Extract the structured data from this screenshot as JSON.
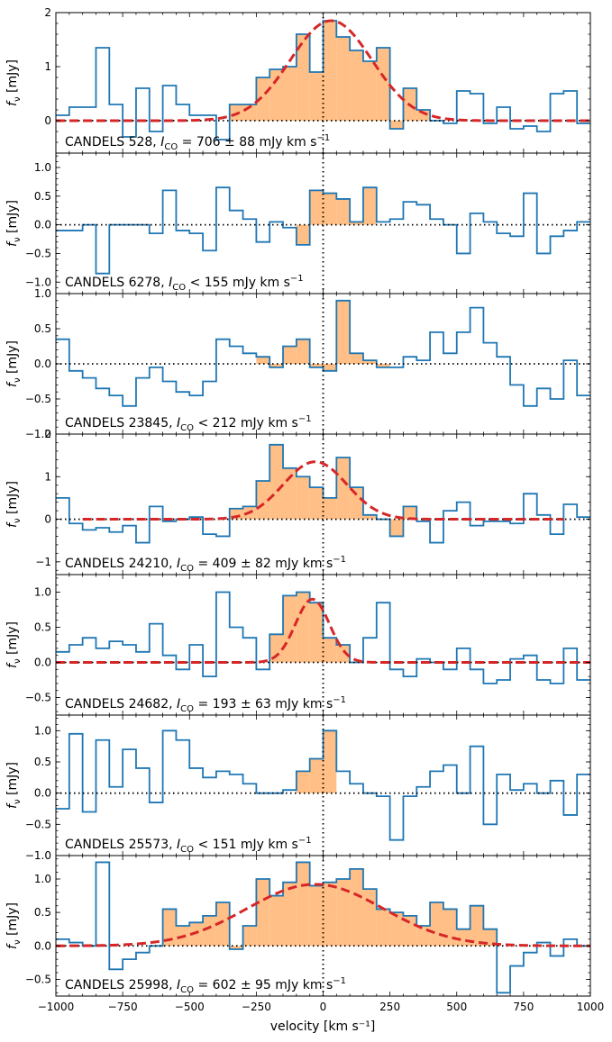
{
  "figure": {
    "xlabel": "velocity [km s⁻¹]"
  },
  "colors": {
    "spectrum": "#1f77b4",
    "fill": "#ffbf86",
    "fit": "#d62728",
    "zero_line": "#000000",
    "axes": "#000000"
  },
  "chart_data": [
    {
      "type": "line",
      "panel_label": "CANDELS 528, I_CO = 706 ± 88 mJy km s⁻¹",
      "label_prefix": "CANDELS 528, ",
      "label_sym": "I",
      "label_sub": "CO",
      "label_rest": " = 706 ± 88 mJy km s",
      "label_sup": "−1",
      "ylabel": "f_ν [mJy]",
      "xlim": [
        -1000,
        1000
      ],
      "ylim": [
        -0.6,
        2.0
      ],
      "yticks": [
        0,
        1,
        2
      ],
      "yticklabels": [
        "0",
        "1",
        "2"
      ],
      "bin_width": 50,
      "channel_centers_kms": [
        -975,
        -925,
        -875,
        -825,
        -775,
        -725,
        -675,
        -625,
        -575,
        -525,
        -475,
        -425,
        -375,
        -325,
        -275,
        -225,
        -175,
        -125,
        -75,
        -25,
        25,
        75,
        125,
        175,
        225,
        275,
        325,
        375,
        425,
        475,
        525,
        575,
        625,
        675,
        725,
        775,
        825,
        875,
        925,
        975
      ],
      "flux_mjy": [
        0.1,
        0.25,
        0.25,
        1.35,
        0.3,
        -0.3,
        0.6,
        -0.2,
        0.65,
        0.3,
        0.1,
        0.1,
        -0.35,
        0.3,
        0.3,
        0.8,
        0.95,
        1.0,
        1.6,
        0.9,
        1.85,
        1.55,
        1.3,
        1.1,
        1.35,
        -0.15,
        0.6,
        0.2,
        0.0,
        -0.05,
        0.55,
        0.5,
        -0.05,
        0.25,
        -0.15,
        -0.1,
        -0.2,
        0.5,
        0.55,
        -0.05
      ],
      "highlight_velocity_range_kms": [
        -350,
        450
      ],
      "fit": {
        "amplitude_mjy": 1.85,
        "center_kms": 30,
        "fwhm_kms": 360
      },
      "fit_xrange_kms": [
        -1000,
        1000
      ]
    },
    {
      "type": "line",
      "panel_label": "CANDELS 6278, I_CO < 155 mJy km s⁻¹",
      "label_prefix": "CANDELS 6278, ",
      "label_sym": "I",
      "label_sub": "CO",
      "label_rest": " < 155 mJy km s",
      "label_sup": "−1",
      "ylabel": "f_ν [mJy]",
      "xlim": [
        -1000,
        1000
      ],
      "ylim": [
        -1.2,
        1.25
      ],
      "yticks": [
        -1.0,
        -0.5,
        0.0,
        0.5,
        1.0
      ],
      "yticklabels": [
        "−1.0",
        "−0.5",
        "0.0",
        "0.5",
        "1.0"
      ],
      "bin_width": 50,
      "channel_centers_kms": [
        -975,
        -925,
        -875,
        -825,
        -775,
        -725,
        -675,
        -625,
        -575,
        -525,
        -475,
        -425,
        -375,
        -325,
        -275,
        -225,
        -175,
        -125,
        -75,
        -25,
        25,
        75,
        125,
        175,
        225,
        275,
        325,
        375,
        425,
        475,
        525,
        575,
        625,
        675,
        725,
        775,
        825,
        875,
        925,
        975
      ],
      "flux_mjy": [
        -0.1,
        -0.1,
        0.0,
        -0.85,
        0.0,
        0.0,
        0.0,
        -0.15,
        0.6,
        -0.1,
        -0.15,
        -0.45,
        0.65,
        0.25,
        0.1,
        -0.3,
        0.05,
        -0.05,
        -0.35,
        0.6,
        0.55,
        0.45,
        0.05,
        0.65,
        0.05,
        0.1,
        0.4,
        0.35,
        0.1,
        0.0,
        -0.5,
        0.2,
        0.05,
        -0.15,
        -0.2,
        0.55,
        -0.5,
        -0.2,
        -0.1,
        0.05
      ],
      "highlight_velocity_range_kms": [
        -100,
        200
      ],
      "fit": null
    },
    {
      "type": "line",
      "panel_label": "CANDELS 23845, I_CO < 212 mJy km s⁻¹",
      "label_prefix": "CANDELS 23845, ",
      "label_sym": "I",
      "label_sub": "CO",
      "label_rest": " < 212 mJy km s",
      "label_sup": "−1",
      "ylabel": "f_ν [mJy]",
      "xlim": [
        -1000,
        1000
      ],
      "ylim": [
        -1.0,
        1.0
      ],
      "yticks": [
        -1.0,
        -0.5,
        0.0,
        0.5,
        1.0
      ],
      "yticklabels": [
        "−1.0",
        "−0.5",
        "0.0",
        "0.5",
        "1.0"
      ],
      "bin_width": 50,
      "channel_centers_kms": [
        -975,
        -925,
        -875,
        -825,
        -775,
        -725,
        -675,
        -625,
        -575,
        -525,
        -475,
        -425,
        -375,
        -325,
        -275,
        -225,
        -175,
        -125,
        -75,
        -25,
        25,
        75,
        125,
        175,
        225,
        275,
        325,
        375,
        425,
        475,
        525,
        575,
        625,
        675,
        725,
        775,
        825,
        875,
        925,
        975
      ],
      "flux_mjy": [
        0.35,
        -0.1,
        -0.2,
        -0.35,
        -0.45,
        -0.6,
        -0.2,
        -0.05,
        -0.25,
        -0.4,
        -0.45,
        -0.25,
        0.35,
        0.25,
        0.15,
        0.1,
        -0.05,
        0.25,
        0.35,
        -0.05,
        -0.1,
        0.9,
        0.15,
        0.05,
        -0.05,
        -0.05,
        0.1,
        0.05,
        0.45,
        0.15,
        0.45,
        0.8,
        0.3,
        0.1,
        -0.3,
        -0.6,
        -0.35,
        -0.5,
        0.05,
        -0.45
      ],
      "highlight_velocity_range_kms": [
        -250,
        250
      ],
      "fit": null
    },
    {
      "type": "line",
      "panel_label": "CANDELS 24210, I_CO = 409 ± 82 mJy km s⁻¹",
      "label_prefix": "CANDELS 24210, ",
      "label_sym": "I",
      "label_sub": "CO",
      "label_rest": " = 409 ± 82 mJy km s",
      "label_sup": "−1",
      "ylabel": "f_ν [mJy]",
      "xlim": [
        -1000,
        1000
      ],
      "ylim": [
        -1.3,
        2.0
      ],
      "yticks": [
        -1,
        0,
        1,
        2
      ],
      "yticklabels": [
        "−1",
        "0",
        "1",
        "2"
      ],
      "bin_width": 50,
      "channel_centers_kms": [
        -975,
        -925,
        -875,
        -825,
        -775,
        -725,
        -675,
        -625,
        -575,
        -525,
        -475,
        -425,
        -375,
        -325,
        -275,
        -225,
        -175,
        -125,
        -75,
        -25,
        25,
        75,
        125,
        175,
        225,
        275,
        325,
        375,
        425,
        475,
        525,
        575,
        625,
        675,
        725,
        775,
        825,
        875,
        925,
        975
      ],
      "flux_mjy": [
        0.5,
        -0.1,
        -0.25,
        -0.2,
        -0.3,
        -0.15,
        -0.55,
        0.3,
        -0.05,
        0.0,
        0.05,
        -0.35,
        -0.4,
        0.25,
        0.3,
        0.9,
        1.75,
        1.2,
        1.0,
        0.75,
        0.5,
        1.45,
        0.75,
        0.1,
        0.0,
        -0.4,
        0.3,
        -0.05,
        -0.55,
        0.2,
        0.4,
        -0.15,
        -0.05,
        -0.05,
        -0.1,
        0.6,
        0.1,
        -0.35,
        0.35,
        0.05
      ],
      "highlight_velocity_range_kms": [
        -350,
        350
      ],
      "fit": {
        "amplitude_mjy": 1.35,
        "center_kms": -30,
        "fwhm_kms": 280
      },
      "fit_xrange_kms": [
        -900,
        900
      ]
    },
    {
      "type": "line",
      "panel_label": "CANDELS 24682, I_CO = 193 ± 63 mJy km s⁻¹",
      "label_prefix": "CANDELS 24682, ",
      "label_sym": "I",
      "label_sub": "CO",
      "label_rest": " = 193 ± 63 mJy km s",
      "label_sup": "−1",
      "ylabel": "f_ν [mJy]",
      "xlim": [
        -1000,
        1000
      ],
      "ylim": [
        -0.75,
        1.25
      ],
      "yticks": [
        -0.5,
        0.0,
        0.5,
        1.0
      ],
      "yticklabels": [
        "−0.5",
        "0.0",
        "0.5",
        "1.0"
      ],
      "bin_width": 50,
      "channel_centers_kms": [
        -975,
        -925,
        -875,
        -825,
        -775,
        -725,
        -675,
        -625,
        -575,
        -525,
        -475,
        -425,
        -375,
        -325,
        -275,
        -225,
        -175,
        -125,
        -75,
        -25,
        25,
        75,
        125,
        175,
        225,
        275,
        325,
        375,
        425,
        475,
        525,
        575,
        625,
        675,
        725,
        775,
        825,
        875,
        925,
        975
      ],
      "flux_mjy": [
        0.15,
        0.25,
        0.35,
        0.2,
        0.3,
        0.25,
        0.15,
        0.55,
        0.1,
        -0.1,
        0.25,
        -0.2,
        1.0,
        0.5,
        0.35,
        -0.1,
        0.4,
        0.95,
        1.0,
        0.85,
        0.35,
        0.25,
        0.0,
        0.35,
        0.85,
        -0.1,
        -0.2,
        0.05,
        0.0,
        -0.1,
        0.2,
        -0.1,
        -0.3,
        -0.25,
        0.05,
        0.1,
        -0.25,
        -0.3,
        0.2,
        -0.25
      ],
      "highlight_velocity_range_kms": [
        -200,
        150
      ],
      "fit": {
        "amplitude_mjy": 0.9,
        "center_kms": -40,
        "fwhm_kms": 150
      },
      "fit_xrange_kms": [
        -1000,
        1000
      ]
    },
    {
      "type": "line",
      "panel_label": "CANDELS 25573, I_CO < 151 mJy km s⁻¹",
      "label_prefix": "CANDELS 25573, ",
      "label_sym": "I",
      "label_sub": "CO",
      "label_rest": " < 151 mJy km s",
      "label_sup": "−1",
      "ylabel": "f_ν [mJy]",
      "xlim": [
        -1000,
        1000
      ],
      "ylim": [
        -1.0,
        1.25
      ],
      "yticks": [
        -1.0,
        -0.5,
        0.0,
        0.5,
        1.0
      ],
      "yticklabels": [
        "−1.0",
        "−0.5",
        "0.0",
        "0.5",
        "1.0"
      ],
      "bin_width": 50,
      "channel_centers_kms": [
        -975,
        -925,
        -875,
        -825,
        -775,
        -725,
        -675,
        -625,
        -575,
        -525,
        -475,
        -425,
        -375,
        -325,
        -275,
        -225,
        -175,
        -125,
        -75,
        -25,
        25,
        75,
        125,
        175,
        225,
        275,
        325,
        375,
        425,
        475,
        525,
        575,
        625,
        675,
        725,
        775,
        825,
        875,
        925,
        975
      ],
      "flux_mjy": [
        -0.25,
        0.95,
        -0.3,
        0.85,
        0.1,
        0.7,
        0.4,
        -0.15,
        1.0,
        0.85,
        0.4,
        0.25,
        0.35,
        0.3,
        0.15,
        0.0,
        0.0,
        0.05,
        0.35,
        0.55,
        1.0,
        0.35,
        0.15,
        0.0,
        -0.05,
        -0.75,
        -0.05,
        0.1,
        0.35,
        0.45,
        0.0,
        0.75,
        -0.5,
        0.3,
        0.05,
        0.15,
        0.0,
        0.2,
        -0.35,
        0.3
      ],
      "highlight_velocity_range_kms": [
        -100,
        50
      ],
      "fit": null
    },
    {
      "type": "line",
      "panel_label": "CANDELS 25998, I_CO = 602 ± 95 mJy km s⁻¹",
      "label_prefix": "CANDELS 25998, ",
      "label_sym": "I",
      "label_sub": "CO",
      "label_rest": " = 602 ± 95 mJy km s",
      "label_sup": "−1",
      "ylabel": "f_ν [mJy]",
      "xlim": [
        -1000,
        1000
      ],
      "ylim": [
        -0.75,
        1.35
      ],
      "yticks": [
        -0.5,
        0.0,
        0.5,
        1.0
      ],
      "yticklabels": [
        "−0.5",
        "0.0",
        "0.5",
        "1.0"
      ],
      "bin_width": 50,
      "channel_centers_kms": [
        -975,
        -925,
        -875,
        -825,
        -775,
        -725,
        -675,
        -625,
        -575,
        -525,
        -475,
        -425,
        -375,
        -325,
        -275,
        -225,
        -175,
        -125,
        -75,
        -25,
        25,
        75,
        125,
        175,
        225,
        275,
        325,
        375,
        425,
        475,
        525,
        575,
        625,
        675,
        725,
        775,
        825,
        875,
        925,
        975
      ],
      "flux_mjy": [
        0.1,
        0.05,
        0.0,
        1.25,
        -0.35,
        -0.2,
        -0.1,
        0.0,
        0.55,
        0.3,
        0.35,
        0.45,
        0.65,
        -0.05,
        0.3,
        1.0,
        0.75,
        0.95,
        1.25,
        0.9,
        0.95,
        1.0,
        1.15,
        0.85,
        0.55,
        0.5,
        0.45,
        0.3,
        0.65,
        0.55,
        0.25,
        0.6,
        0.25,
        -0.7,
        -0.3,
        -0.1,
        0.05,
        -0.15,
        0.1,
        0.0
      ],
      "highlight_velocity_range_kms": [
        -650,
        650
      ],
      "fit": {
        "amplitude_mjy": 0.92,
        "center_kms": -30,
        "fwhm_kms": 600
      },
      "fit_xrange_kms": [
        -1000,
        1000
      ]
    }
  ],
  "xaxis": {
    "xlim": [
      -1000,
      1000
    ],
    "ticks": [
      -1000,
      -750,
      -500,
      -250,
      0,
      250,
      500,
      750,
      1000
    ],
    "ticklabels": [
      "−1000",
      "−750",
      "−500",
      "−250",
      "0",
      "250",
      "500",
      "750",
      "1000"
    ],
    "minor_step": 50
  }
}
